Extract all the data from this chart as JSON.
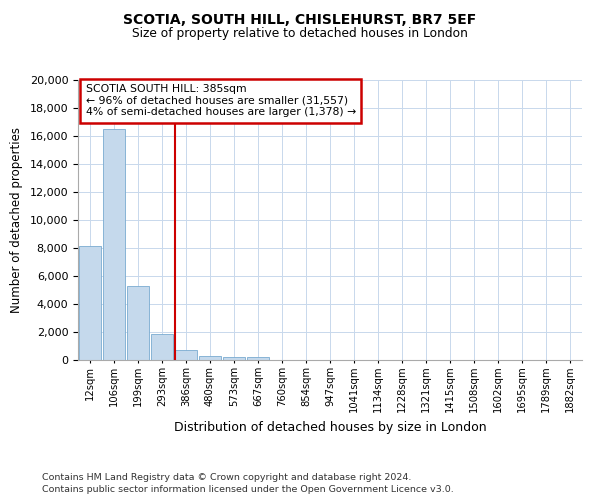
{
  "title1": "SCOTIA, SOUTH HILL, CHISLEHURST, BR7 5EF",
  "title2": "Size of property relative to detached houses in London",
  "xlabel": "Distribution of detached houses by size in London",
  "ylabel": "Number of detached properties",
  "footnote1": "Contains HM Land Registry data © Crown copyright and database right 2024.",
  "footnote2": "Contains public sector information licensed under the Open Government Licence v3.0.",
  "annotation_title": "SCOTIA SOUTH HILL: 385sqm",
  "annotation_line1": "← 96% of detached houses are smaller (31,557)",
  "annotation_line2": "4% of semi-detached houses are larger (1,378) →",
  "bar_color": "#c5d9ec",
  "bar_edge_color": "#7aabd0",
  "red_line_color": "#cc0000",
  "annotation_box_color": "#cc0000",
  "categories": [
    "12sqm",
    "106sqm",
    "199sqm",
    "293sqm",
    "386sqm",
    "480sqm",
    "573sqm",
    "667sqm",
    "760sqm",
    "854sqm",
    "947sqm",
    "1041sqm",
    "1134sqm",
    "1228sqm",
    "1321sqm",
    "1415sqm",
    "1508sqm",
    "1602sqm",
    "1695sqm",
    "1789sqm",
    "1882sqm"
  ],
  "values": [
    8150,
    16500,
    5300,
    1850,
    750,
    300,
    200,
    200,
    0,
    0,
    0,
    0,
    0,
    0,
    0,
    0,
    0,
    0,
    0,
    0,
    0
  ],
  "ylim": [
    0,
    20000
  ],
  "yticks": [
    0,
    2000,
    4000,
    6000,
    8000,
    10000,
    12000,
    14000,
    16000,
    18000,
    20000
  ],
  "background_color": "#ffffff",
  "grid_color": "#c8d8ec",
  "red_line_index": 4
}
